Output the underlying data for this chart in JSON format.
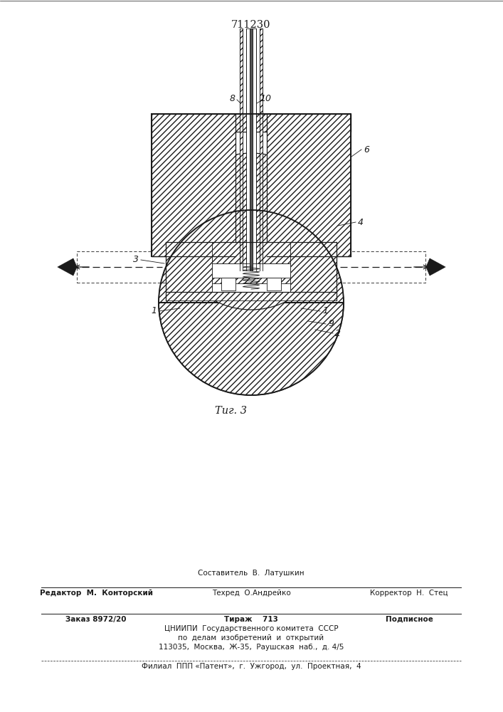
{
  "patent_number": "711230",
  "fig_caption": "Τиг. 3",
  "bg_color": "#ffffff",
  "lc": "#1a1a1a",
  "bottom_col2_top": "Составитель  В.  Латушкин",
  "bottom_col1_row1": "Редактор  М.  Конторский",
  "bottom_col2_row1": "Техред  О.Андрейко",
  "bottom_col3_row1": "Корректор  Н.  Стец",
  "bottom_col1_row2": "Заказ 8972/20",
  "bottom_col2_row2": "Тираж    713",
  "bottom_col3_row2": "Подписное",
  "cniipи_lines": [
    "ЦНИИПИ  Государственного комитета  СССР",
    "по  делам  изобретений  и  открытий",
    "113035,  Москва,  Ж-35,  Раушская  наб.,  д. 4/5"
  ],
  "filial_line": "Филиал  ППП «Патент»,  г.  Ужгород,  ул.  Проектная,  4"
}
